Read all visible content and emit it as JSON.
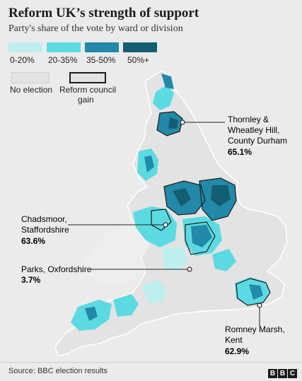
{
  "title": "Reform UK’s strength of support",
  "subtitle": "Party's share of the vote by ward or division",
  "legend": {
    "bins": [
      {
        "label": "0-20%",
        "color": "#bfeeee"
      },
      {
        "label": "20-35%",
        "color": "#5cdae2"
      },
      {
        "label": "35-50%",
        "color": "#2289a8"
      },
      {
        "label": "50%+",
        "color": "#145e72"
      }
    ],
    "no_election": {
      "label": "No election",
      "color": "#e3e3e3"
    },
    "council_gain": {
      "label_line1": "Reform council",
      "label_line2": "gain"
    }
  },
  "annotations": [
    {
      "name_line1": "Thornley &",
      "name_line2": "Wheatley Hill,",
      "name_line3": "County Durham",
      "value": "65.1%"
    },
    {
      "name_line1": "Chadsmoor,",
      "name_line2": "Staffordshire",
      "value": "63.6%"
    },
    {
      "name_line1": "Parks, Oxfordshire",
      "value": "3.7%"
    },
    {
      "name_line1": "Romney Marsh,",
      "name_line2": "Kent",
      "value": "62.9%"
    }
  ],
  "source": "Source: BBC election results",
  "logo": [
    "B",
    "B",
    "C"
  ]
}
